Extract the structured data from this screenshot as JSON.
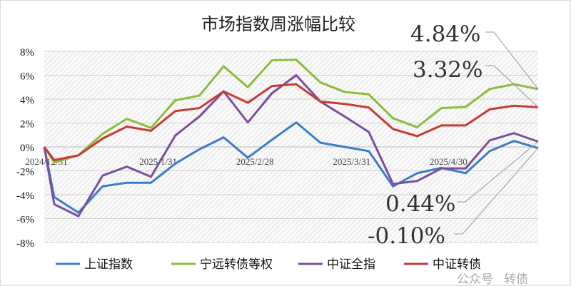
{
  "chart_data": {
    "type": "line",
    "title": "市场指数周涨幅比较",
    "xlabel": "",
    "ylabel": "",
    "ylim": [
      -8,
      8
    ],
    "yticks": [
      "8%",
      "6%",
      "4%",
      "2%",
      "0%",
      "-2%",
      "-4%",
      "-6%",
      "-8%"
    ],
    "ytick_values": [
      8,
      6,
      4,
      2,
      0,
      -2,
      -4,
      -6,
      -8
    ],
    "xtick_labels": [
      "2024/12/31",
      "2025/1/31",
      "2025/2/28",
      "2025/3/31",
      "2025/4/30"
    ],
    "xtick_indices": [
      0,
      5,
      9,
      13,
      17
    ],
    "grid": true,
    "legend_position": "bottom",
    "series": [
      {
        "name": "上证指数",
        "color": "#3a7dc9",
        "values": [
          0,
          -4.2,
          -5.5,
          -3.3,
          -3.0,
          -3.0,
          -1.4,
          -0.2,
          0.8,
          -0.9,
          0.6,
          2.05,
          0.35,
          0.0,
          -0.35,
          -3.3,
          -2.2,
          -1.75,
          -2.2,
          -0.35,
          0.5,
          -0.1
        ]
      },
      {
        "name": "宁远转债等权",
        "color": "#8dbb3c",
        "values": [
          0,
          -1.3,
          -0.7,
          1.1,
          2.35,
          1.6,
          3.9,
          4.3,
          6.75,
          5.0,
          7.25,
          7.3,
          5.4,
          4.6,
          4.4,
          2.4,
          1.65,
          3.25,
          3.35,
          4.85,
          5.25,
          4.84
        ]
      },
      {
        "name": "中证全指",
        "color": "#7b4fa0",
        "values": [
          0,
          -4.8,
          -5.8,
          -2.4,
          -1.65,
          -2.5,
          0.95,
          2.55,
          4.65,
          2.05,
          4.5,
          6.0,
          3.8,
          2.55,
          1.25,
          -3.1,
          -2.85,
          -1.8,
          -1.8,
          0.55,
          1.15,
          0.44
        ]
      },
      {
        "name": "中证转债",
        "color": "#c83a35",
        "values": [
          0,
          -1.1,
          -0.7,
          0.7,
          1.7,
          1.35,
          3.0,
          3.25,
          4.65,
          3.7,
          5.1,
          5.25,
          3.8,
          3.6,
          3.3,
          1.5,
          0.9,
          1.8,
          1.8,
          3.15,
          3.45,
          3.32
        ]
      }
    ],
    "annotations": [
      "4.84%",
      "3.32%",
      "0.44%",
      "-0.10%"
    ],
    "annotation_series": [
      1,
      3,
      2,
      0
    ]
  },
  "watermark": [
    "公众号",
    "转债"
  ]
}
